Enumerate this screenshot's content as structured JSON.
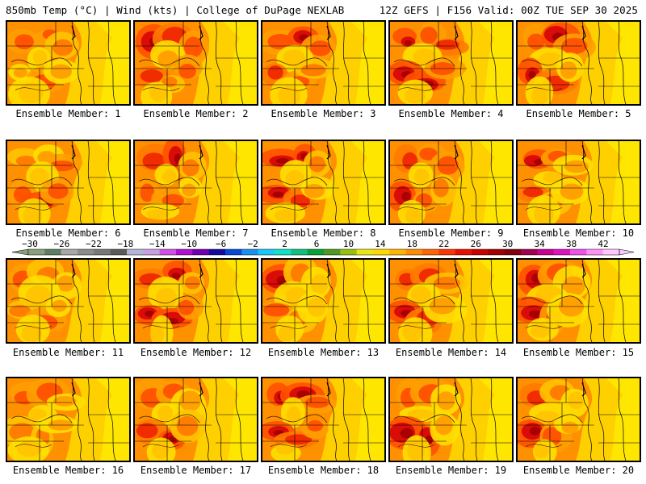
{
  "header": {
    "left": "850mb Temp (°C) | Wind (kts) | College of DuPage NEXLAB",
    "right": "12Z GEFS | F156 Valid: 00Z TUE SEP 30 2025"
  },
  "colorbar": {
    "labels": [
      "-30",
      "-26",
      "-22",
      "-18",
      "-14",
      "-10",
      "-6",
      "-2",
      "2",
      "6",
      "10",
      "14",
      "18",
      "22",
      "26",
      "30",
      "34",
      "38",
      "42"
    ],
    "colors": [
      "#8aa07c",
      "#5e7e63",
      "#a8a8a8",
      "#8c8c8c",
      "#787878",
      "#5a5a5a",
      "#b4b4d8",
      "#c8a0e0",
      "#d050e8",
      "#b010d0",
      "#7000b0",
      "#1808a0",
      "#0848d8",
      "#1890f0",
      "#18c8f8",
      "#10e0c8",
      "#10c080",
      "#08a038",
      "#509820",
      "#98c010",
      "#e8e810",
      "#ffd800",
      "#ffb400",
      "#ff8c00",
      "#ff6400",
      "#f83800",
      "#e81000",
      "#c80000",
      "#a00000",
      "#800010",
      "#a00050",
      "#c80090",
      "#e010c0",
      "#f050e8",
      "#ff90f8",
      "#ffc8ff"
    ],
    "unit": "°C"
  },
  "panels": [
    {
      "label": "Ensemble Member: 1",
      "member": 1,
      "heat": [
        0.5,
        0.6,
        0.4,
        0.2,
        0.3,
        0.5,
        0.3,
        0.1
      ]
    },
    {
      "label": "Ensemble Member: 2",
      "member": 2,
      "heat": [
        0.8,
        0.7,
        0.6,
        0.3,
        0.7,
        0.4,
        0.6,
        0.2
      ]
    },
    {
      "label": "Ensemble Member: 3",
      "member": 3,
      "heat": [
        0.6,
        0.9,
        0.5,
        0.2,
        0.7,
        0.6,
        0.4,
        0.1
      ]
    },
    {
      "label": "Ensemble Member: 4",
      "member": 4,
      "heat": [
        0.8,
        0.6,
        0.7,
        0.2,
        0.9,
        0.8,
        0.5,
        0.2
      ]
    },
    {
      "label": "Ensemble Member: 5",
      "member": 5,
      "heat": [
        0.5,
        0.8,
        0.6,
        0.2,
        0.9,
        0.7,
        0.3,
        0.1
      ]
    },
    {
      "label": "Ensemble Member: 6",
      "member": 6,
      "heat": [
        0.4,
        0.3,
        0.5,
        0.1,
        0.5,
        0.8,
        0.6,
        0.1
      ]
    },
    {
      "label": "Ensemble Member: 7",
      "member": 7,
      "heat": [
        0.7,
        0.8,
        0.4,
        0.2,
        0.5,
        0.6,
        0.3,
        0.1
      ]
    },
    {
      "label": "Ensemble Member: 8",
      "member": 8,
      "heat": [
        0.9,
        0.9,
        0.4,
        0.2,
        0.8,
        0.7,
        0.3,
        0.1
      ]
    },
    {
      "label": "Ensemble Member: 9",
      "member": 9,
      "heat": [
        0.7,
        0.6,
        0.5,
        0.2,
        0.8,
        0.6,
        0.4,
        0.1
      ]
    },
    {
      "label": "Ensemble Member: 10",
      "member": 10,
      "heat": [
        0.8,
        0.6,
        0.3,
        0.1,
        0.7,
        0.4,
        0.3,
        0.1
      ]
    },
    {
      "label": "Ensemble Member: 11",
      "member": 11,
      "heat": [
        0.6,
        0.4,
        0.3,
        0.2,
        0.4,
        0.5,
        0.3,
        0.1
      ]
    },
    {
      "label": "Ensemble Member: 12",
      "member": 12,
      "heat": [
        0.7,
        0.8,
        0.4,
        0.2,
        0.9,
        0.8,
        0.5,
        0.2
      ]
    },
    {
      "label": "Ensemble Member: 13",
      "member": 13,
      "heat": [
        0.8,
        0.4,
        0.2,
        0.1,
        0.6,
        0.4,
        0.2,
        0.1
      ]
    },
    {
      "label": "Ensemble Member: 14",
      "member": 14,
      "heat": [
        0.7,
        0.7,
        0.4,
        0.2,
        0.8,
        0.7,
        0.3,
        0.1
      ]
    },
    {
      "label": "Ensemble Member: 15",
      "member": 15,
      "heat": [
        0.9,
        0.5,
        0.3,
        0.1,
        0.9,
        0.6,
        0.3,
        0.1
      ]
    },
    {
      "label": "Ensemble Member: 16",
      "member": 16,
      "heat": [
        0.6,
        0.5,
        0.3,
        0.1,
        0.4,
        0.4,
        0.3,
        0.1
      ]
    },
    {
      "label": "Ensemble Member: 17",
      "member": 17,
      "heat": [
        0.5,
        0.6,
        0.3,
        0.2,
        0.7,
        0.8,
        0.4,
        0.1
      ]
    },
    {
      "label": "Ensemble Member: 18",
      "member": 18,
      "heat": [
        0.9,
        0.8,
        0.6,
        0.2,
        0.8,
        0.7,
        0.5,
        0.2
      ]
    },
    {
      "label": "Ensemble Member: 19",
      "member": 19,
      "heat": [
        0.6,
        0.5,
        0.3,
        0.1,
        0.9,
        0.8,
        0.3,
        0.1
      ]
    },
    {
      "label": "Ensemble Member: 20",
      "member": 20,
      "heat": [
        0.7,
        0.4,
        0.2,
        0.1,
        0.8,
        0.5,
        0.3,
        0.1
      ]
    }
  ]
}
